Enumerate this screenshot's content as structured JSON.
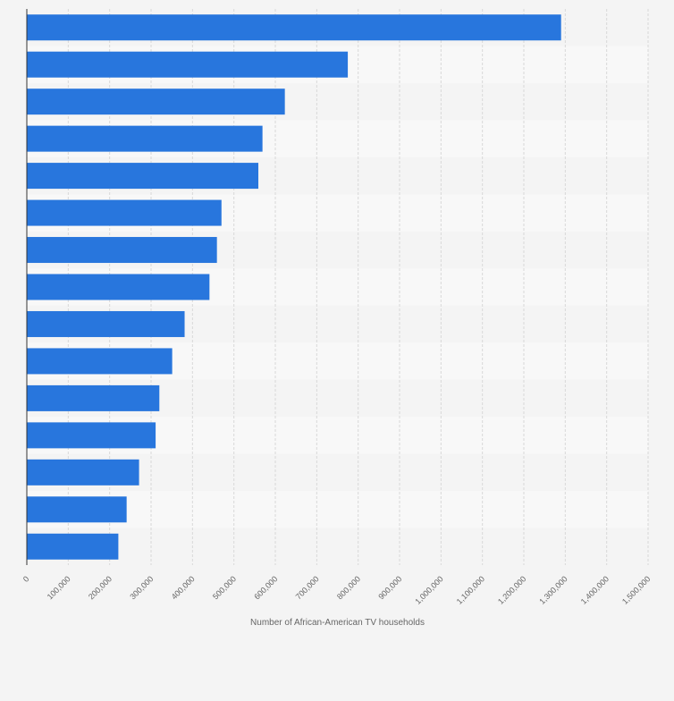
{
  "chart_data": {
    "type": "bar",
    "orientation": "horizontal",
    "title": "",
    "xlabel": "Number of African-American TV households",
    "ylabel": "",
    "xlim": [
      0,
      1500000
    ],
    "x_ticks": [
      0,
      100000,
      200000,
      300000,
      400000,
      500000,
      600000,
      700000,
      800000,
      900000,
      1000000,
      1100000,
      1200000,
      1300000,
      1400000,
      1500000
    ],
    "x_tick_labels": [
      "0",
      "100,000",
      "200,000",
      "300,000",
      "400,000",
      "500,000",
      "600,000",
      "700,000",
      "800,000",
      "900,000",
      "1,000,000",
      "1,100,000",
      "1,200,000",
      "1,300,000",
      "1,400,000",
      "1,500,000"
    ],
    "values": [
      1290000,
      775000,
      623000,
      569000,
      559000,
      470000,
      459000,
      441000,
      381000,
      351000,
      320000,
      311000,
      271000,
      241000,
      221000
    ],
    "bar_color": "#2876dd",
    "grid": true,
    "legend": "none"
  }
}
